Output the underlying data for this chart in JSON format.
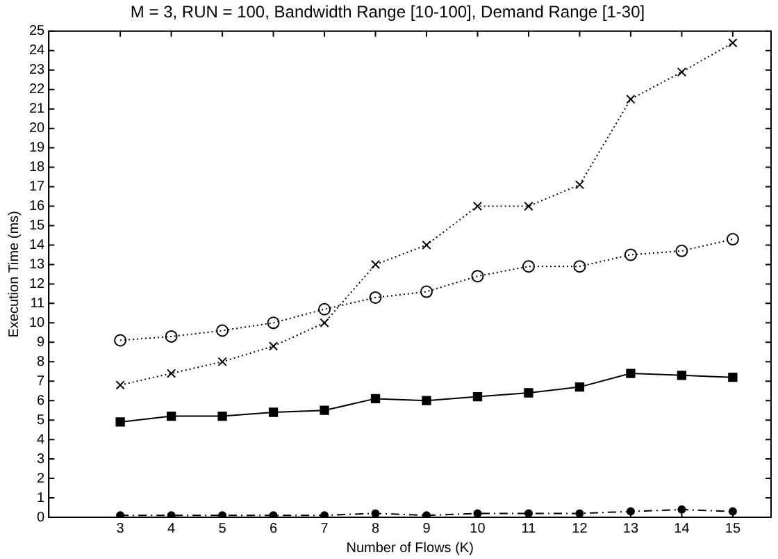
{
  "chart_data": {
    "type": "line",
    "title": "M = 3, RUN = 100, Bandwidth Range [10-100], Demand Range [1-30]",
    "xlabel": "Number of Flows (K)",
    "ylabel": "Execution Time (ms)",
    "x": [
      3,
      4,
      5,
      6,
      7,
      8,
      9,
      10,
      11,
      12,
      13,
      14,
      15
    ],
    "series": [
      {
        "color": "#000000",
        "marker": "cross",
        "line_style": "dotted",
        "values": [
          6.8,
          7.4,
          8.0,
          8.8,
          10.0,
          13.0,
          14.0,
          16.0,
          16.0,
          17.1,
          21.5,
          22.9,
          24.4
        ]
      },
      {
        "color": "#000000",
        "marker": "circle",
        "line_style": "dotted",
        "values": [
          9.1,
          9.3,
          9.6,
          10.0,
          10.7,
          11.3,
          11.6,
          12.4,
          12.9,
          12.9,
          13.5,
          13.7,
          14.3
        ]
      },
      {
        "color": "#000000",
        "marker": "square",
        "line_style": "solid",
        "values": [
          4.9,
          5.2,
          5.2,
          5.4,
          5.5,
          6.1,
          6.0,
          6.2,
          6.4,
          6.7,
          7.4,
          7.3,
          7.2
        ]
      },
      {
        "color": "#000000",
        "marker": "circle",
        "line_style": "dashed",
        "values": [
          0.1,
          0.1,
          0.1,
          0.1,
          0.1,
          0.2,
          0.1,
          0.2,
          0.2,
          0.2,
          0.3,
          0.4,
          0.3
        ]
      }
    ],
    "xlim": [
      1.6,
      15.75
    ],
    "xticks": [
      3,
      4,
      5,
      6,
      7,
      8,
      9,
      10,
      11,
      12,
      13,
      14,
      15
    ],
    "ylim": [
      0,
      25
    ],
    "yticks": [
      0,
      1,
      2,
      3,
      4,
      5,
      6,
      7,
      8,
      9,
      10,
      11,
      12,
      13,
      14,
      15,
      16,
      17,
      18,
      19,
      20,
      21,
      22,
      23,
      24,
      25
    ],
    "grid": false,
    "legend": false
  }
}
